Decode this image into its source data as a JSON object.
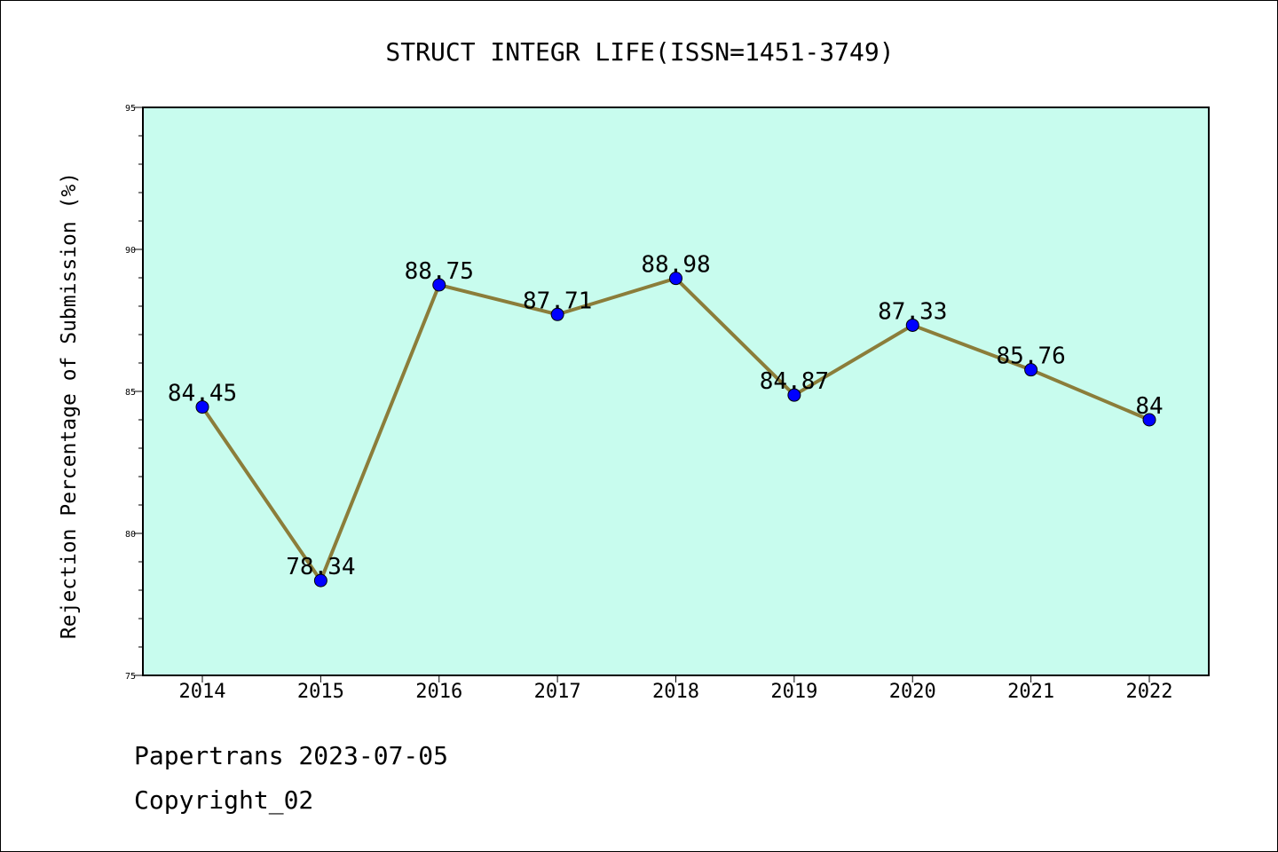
{
  "chart_data": {
    "type": "line",
    "title": "STRUCT INTEGR LIFE(ISSN=1451-3749)",
    "xlabel": "",
    "ylabel": "Rejection Percentage of Submission (%)",
    "categories": [
      "2014",
      "2015",
      "2016",
      "2017",
      "2018",
      "2019",
      "2020",
      "2021",
      "2022"
    ],
    "series": [
      {
        "values": [
          84.45,
          78.34,
          88.75,
          87.71,
          88.98,
          84.87,
          87.33,
          85.76,
          84
        ],
        "labels": [
          "84.45",
          "78.34",
          "88.75",
          "87.71",
          "88.98",
          "84.87",
          "87.33",
          "85.76",
          "84"
        ]
      }
    ],
    "ylim": [
      75,
      95
    ],
    "yticks": [
      "75",
      "80",
      "85",
      "90",
      "95"
    ],
    "grid": false,
    "colors": {
      "plot_background": "#c8fcee",
      "line": "#8b7d3a",
      "marker": "#0000ff"
    }
  },
  "footer": {
    "line1": "Papertrans 2023-07-05",
    "line2": "Copyright_02"
  }
}
